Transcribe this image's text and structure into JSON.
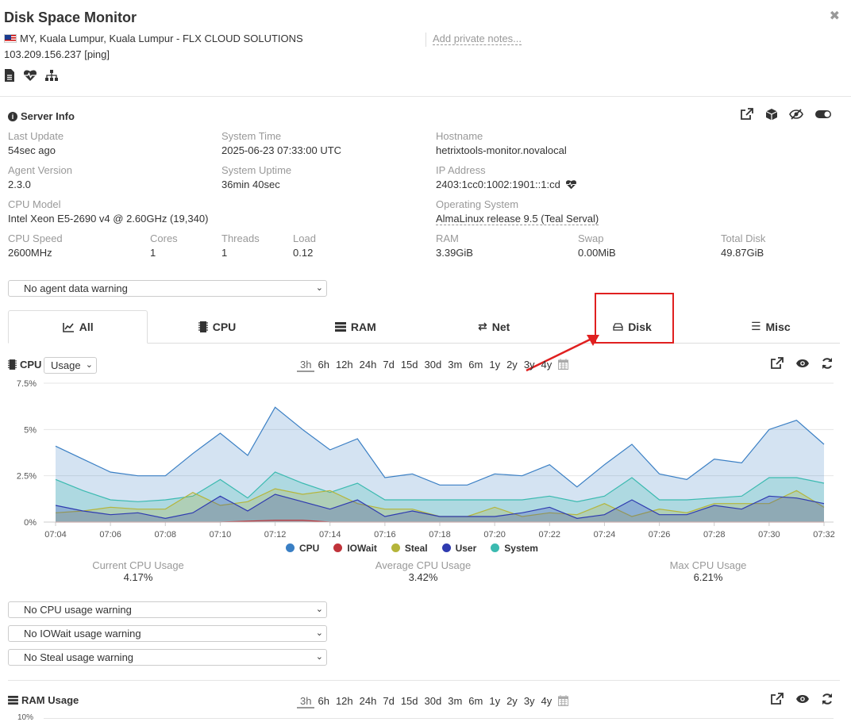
{
  "header": {
    "title": "Disk Space Monitor",
    "location": "MY, Kuala Lumpur, Kuala Lumpur - FLX CLOUD SOLUTIONS",
    "ip": "103.209.156.237 [ping]",
    "notes_placeholder": "Add private notes..."
  },
  "server_info": {
    "heading": "Server Info",
    "fields": {
      "last_update": {
        "label": "Last Update",
        "value": "54sec ago"
      },
      "system_time": {
        "label": "System Time",
        "value": "2025-06-23 07:33:00 UTC"
      },
      "hostname": {
        "label": "Hostname",
        "value": "hetrixtools-monitor.novalocal"
      },
      "agent_version": {
        "label": "Agent Version",
        "value": "2.3.0"
      },
      "uptime": {
        "label": "System Uptime",
        "value": "36min 40sec"
      },
      "ip_address": {
        "label": "IP Address",
        "value": "2403:1cc0:1002:1901::1:cd"
      },
      "cpu_model": {
        "label": "CPU Model",
        "value": "Intel Xeon E5-2690 v4 @ 2.60GHz (19,340)"
      },
      "os": {
        "label": "Operating System",
        "value": "AlmaLinux release 9.5 (Teal Serval)"
      },
      "cpu_speed": {
        "label": "CPU Speed",
        "value": "2600MHz"
      },
      "cores": {
        "label": "Cores",
        "value": "1"
      },
      "threads": {
        "label": "Threads",
        "value": "1"
      },
      "load": {
        "label": "Load",
        "value": "0.12"
      },
      "ram": {
        "label": "RAM",
        "value": "3.39GiB"
      },
      "swap": {
        "label": "Swap",
        "value": "0.00MiB"
      },
      "total_disk": {
        "label": "Total Disk",
        "value": "49.87GiB"
      }
    },
    "agent_warning_select": "No agent data warning"
  },
  "tabs": {
    "all": "All",
    "cpu": "CPU",
    "ram": "RAM",
    "net": "Net",
    "disk": "Disk",
    "misc": "Misc"
  },
  "cpu_panel": {
    "heading": "CPU",
    "mode_select": "Usage",
    "ranges": [
      "3h",
      "6h",
      "12h",
      "24h",
      "7d",
      "15d",
      "30d",
      "3m",
      "6m",
      "1y",
      "2y",
      "3y",
      "4y"
    ],
    "active_range": "3h",
    "stats": {
      "current": {
        "label": "Current CPU Usage",
        "value": "4.17%"
      },
      "average": {
        "label": "Average CPU Usage",
        "value": "3.42%"
      },
      "max": {
        "label": "Max CPU Usage",
        "value": "6.21%"
      }
    },
    "warnings": {
      "cpu": "No CPU usage warning",
      "iowait": "No IOWait usage warning",
      "steal": "No Steal usage warning"
    }
  },
  "ram_panel": {
    "heading": "RAM Usage",
    "ranges": [
      "3h",
      "6h",
      "12h",
      "24h",
      "7d",
      "15d",
      "30d",
      "3m",
      "6m",
      "1y",
      "2y",
      "3y",
      "4y"
    ],
    "partial_tick": "10%"
  },
  "colors": {
    "cpu": "#3a7fc4",
    "iowait": "#c0333a",
    "steal": "#b5b53a",
    "user": "#2f3bb0",
    "system": "#3bbab0",
    "annotation": "#e02020"
  },
  "chart_data": {
    "type": "area",
    "title": "",
    "xlabel": "",
    "ylabel": "",
    "x_ticks": [
      "07:04",
      "07:06",
      "07:08",
      "07:10",
      "07:12",
      "07:14",
      "07:16",
      "07:18",
      "07:20",
      "07:22",
      "07:24",
      "07:26",
      "07:28",
      "07:30",
      "07:32"
    ],
    "y_ticks": [
      "0%",
      "2.5%",
      "5%",
      "7.5%"
    ],
    "ylim": [
      0,
      7.5
    ],
    "x": [
      "07:04",
      "07:05",
      "07:06",
      "07:07",
      "07:08",
      "07:09",
      "07:10",
      "07:11",
      "07:12",
      "07:13",
      "07:14",
      "07:15",
      "07:16",
      "07:17",
      "07:18",
      "07:19",
      "07:20",
      "07:21",
      "07:22",
      "07:23",
      "07:24",
      "07:25",
      "07:26",
      "07:27",
      "07:28",
      "07:29",
      "07:30",
      "07:31",
      "07:32"
    ],
    "series": [
      {
        "name": "CPU",
        "values": [
          4.1,
          3.4,
          2.7,
          2.5,
          2.5,
          3.7,
          4.8,
          3.6,
          6.2,
          5.0,
          3.9,
          4.5,
          2.4,
          2.6,
          2.0,
          2.0,
          2.6,
          2.5,
          3.1,
          1.9,
          3.1,
          4.2,
          2.6,
          2.3,
          3.4,
          3.2,
          5.0,
          5.5,
          4.2
        ]
      },
      {
        "name": "IOWait",
        "values": [
          0,
          0,
          0,
          0,
          0,
          0,
          0,
          0.05,
          0.1,
          0.1,
          0,
          0,
          0,
          0,
          0,
          0,
          0,
          0,
          0,
          0,
          0,
          0,
          0,
          0,
          0,
          0,
          0,
          0,
          0
        ]
      },
      {
        "name": "Steal",
        "values": [
          0.5,
          0.6,
          0.8,
          0.7,
          0.7,
          1.6,
          0.9,
          1.1,
          1.8,
          1.5,
          1.7,
          1.0,
          0.7,
          0.7,
          0.3,
          0.3,
          0.8,
          0.3,
          0.5,
          0.4,
          1.0,
          0.3,
          0.7,
          0.5,
          1.0,
          1.0,
          1.0,
          1.7,
          0.8
        ]
      },
      {
        "name": "User",
        "values": [
          0.9,
          0.6,
          0.4,
          0.5,
          0.2,
          0.5,
          1.4,
          0.6,
          1.5,
          1.1,
          0.7,
          1.2,
          0.3,
          0.6,
          0.3,
          0.3,
          0.3,
          0.5,
          0.8,
          0.2,
          0.4,
          1.2,
          0.4,
          0.4,
          0.9,
          0.7,
          1.4,
          1.3,
          1.0
        ]
      },
      {
        "name": "System",
        "values": [
          2.3,
          1.7,
          1.2,
          1.1,
          1.2,
          1.4,
          2.3,
          1.3,
          2.7,
          2.1,
          1.6,
          2.1,
          1.2,
          1.2,
          1.2,
          1.2,
          1.2,
          1.2,
          1.4,
          1.1,
          1.4,
          2.4,
          1.2,
          1.2,
          1.3,
          1.4,
          2.4,
          2.4,
          2.1
        ]
      }
    ],
    "legend_position": "bottom",
    "grid": true
  }
}
